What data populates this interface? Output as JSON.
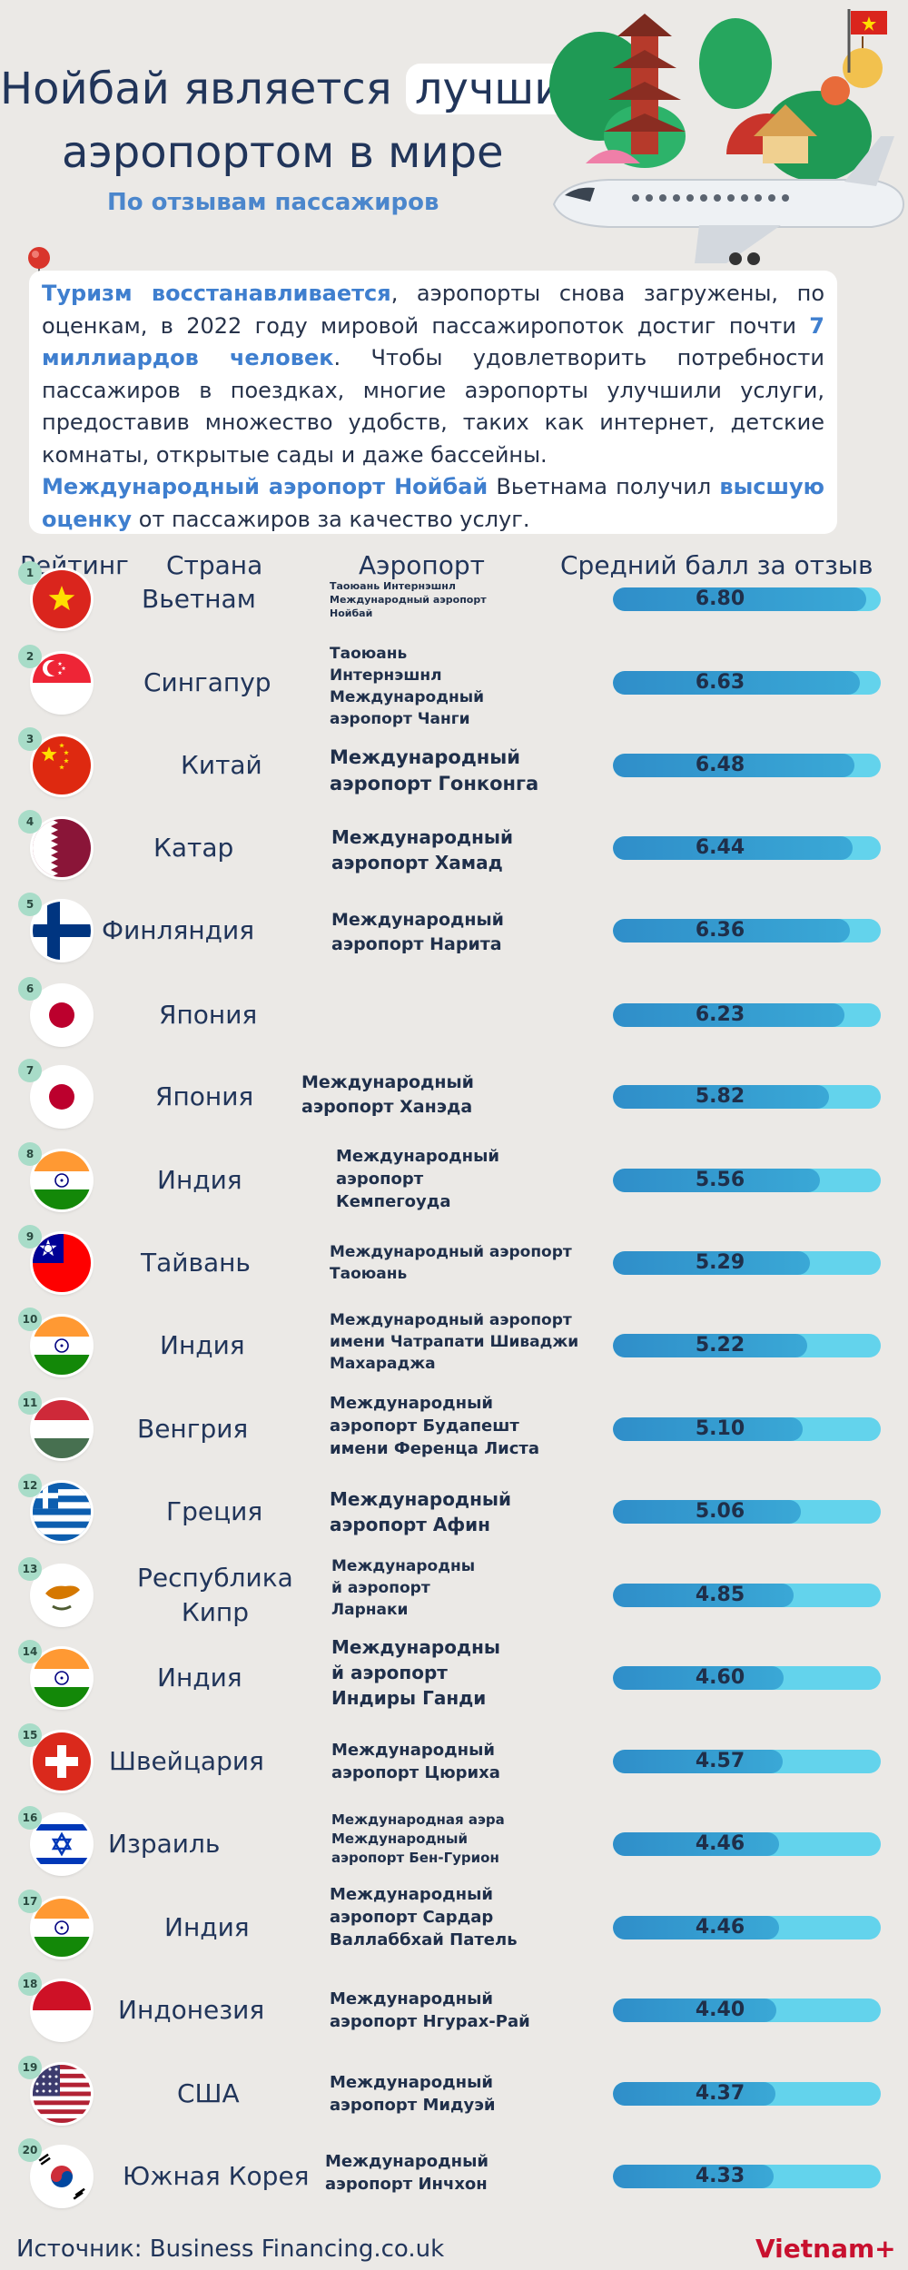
{
  "header": {
    "title_line1_a": "Нойбай является ",
    "title_line1_highlight": "лучшим",
    "title_line2": "аэропортом в мире",
    "subtitle": "По отзывам пассажиров"
  },
  "intro": {
    "p1_hl1": "Туризм восстанавливается",
    "p1_t1": ", аэропорты снова загружены, по оценкам, в 2022 году мировой пассажиропоток достиг почти ",
    "p1_hl2": "7 миллиардов человек",
    "p1_t2": ". Чтобы удовлетворить потребности пассажиров в поездках, многие аэропорты улучшили услуги, предоставив множество удобств, таких как интернет, детские комнаты, открытые сады и даже бассейны.",
    "p2_hl1": "Международный аэропорт Нойбай",
    "p2_t1": " Вьетнама получил ",
    "p2_hl2": "высшую оценку",
    "p2_t2": " от пассажиров за качество услуг."
  },
  "table": {
    "headers": {
      "rank": "Рейтинг",
      "country": "Страна",
      "airport": "Аэропорт",
      "score": "Средний балл за отзыв"
    },
    "max_score": 7.2,
    "rows": [
      {
        "rank": "1",
        "flag": "vietnam-flag",
        "country": "Вьетнам",
        "airport": "Таоюань Интернэшнл\nМеждународный аэропорт\nНойбай",
        "score": "6.80",
        "value": 6.8
      },
      {
        "rank": "2",
        "flag": "singapore-flag",
        "country": "Сингапур",
        "airport": "Таоюань\nИнтернэшнл\nМеждународный\nаэропорт Чанги",
        "score": "6.63",
        "value": 6.63
      },
      {
        "rank": "3",
        "flag": "china-flag",
        "country": "Китай",
        "airport": "Международный\nаэропорт Гонконга",
        "score": "6.48",
        "value": 6.48
      },
      {
        "rank": "4",
        "flag": "qatar-flag",
        "country": "Катар",
        "airport": "Международный\nаэропорт Хамад",
        "score": "6.44",
        "value": 6.44
      },
      {
        "rank": "5",
        "flag": "finland-flag",
        "country": "Финляндия",
        "airport": "Международный\nаэропорт Нарита",
        "score": "6.36",
        "value": 6.36
      },
      {
        "rank": "6",
        "flag": "japan-flag",
        "country": "Япония",
        "airport": "",
        "score": "6.23",
        "value": 6.23
      },
      {
        "rank": "7",
        "flag": "japan-flag",
        "country": "Япония",
        "airport": "Международный\nаэропорт Ханэда",
        "score": "5.82",
        "value": 5.82
      },
      {
        "rank": "8",
        "flag": "india-flag",
        "country": "Индия",
        "airport": "Международный\n      аэропорт\n    Кемпегоуда",
        "score": "5.56",
        "value": 5.56
      },
      {
        "rank": "9",
        "flag": "taiwan-flag",
        "country": "Тайвань",
        "airport": "Международный аэропорт\nТаоюань",
        "score": "5.29",
        "value": 5.29
      },
      {
        "rank": "10",
        "flag": "india-flag",
        "country": "Индия",
        "airport": "Международный аэропорт\nимени Чатрапати Шиваджи\nМахараджа",
        "score": "5.22",
        "value": 5.22
      },
      {
        "rank": "11",
        "flag": "hungary-flag",
        "country": "Венгрия",
        "airport": "Международный\nаэропорт Будапешт\nимени Ференца Листа",
        "score": "5.10",
        "value": 5.1
      },
      {
        "rank": "12",
        "flag": "greece-flag",
        "country": "Греция",
        "airport": "Международный\nаэропорт Афин",
        "score": "5.06",
        "value": 5.06
      },
      {
        "rank": "13",
        "flag": "cyprus-flag",
        "country": "Республика\nКипр",
        "airport": "Международны\nй аэропорт\nЛарнаки",
        "score": "4.85",
        "value": 4.85
      },
      {
        "rank": "14",
        "flag": "india-flag",
        "country": "Индия",
        "airport": "Международны\nй аэропорт\nИндиры Ганди",
        "score": "4.60",
        "value": 4.6
      },
      {
        "rank": "15",
        "flag": "switzerland-flag",
        "country": "Швейцария",
        "airport": "Международный\nаэропорт Цюриха",
        "score": "4.57",
        "value": 4.57
      },
      {
        "rank": "16",
        "flag": "israel-flag",
        "country": "Израиль",
        "airport": "Международная аэра\nМеждународный\nаэропорт Бен-Гурион",
        "score": "4.46",
        "value": 4.46
      },
      {
        "rank": "17",
        "flag": "india-flag",
        "country": "Индия",
        "airport": "Международный\nаэропорт Сардар\nВаллаббхай Патель",
        "score": "4.46",
        "value": 4.46
      },
      {
        "rank": "18",
        "flag": "indonesia-flag",
        "country": "Индонезия",
        "airport": "Международный\nаэропорт Нгурах-Рай",
        "score": "4.40",
        "value": 4.4
      },
      {
        "rank": "19",
        "flag": "usa-flag",
        "country": "США",
        "airport": "Международный\nаэропорт Мидуэй",
        "score": "4.37",
        "value": 4.37
      },
      {
        "rank": "20",
        "flag": "south-korea-flag",
        "country": "Южная Корея",
        "airport": "Международный\nаэропорт Инчхон",
        "score": "4.33",
        "value": 4.33
      }
    ]
  },
  "footer": {
    "source": "Источник: Business Financing.co.uk",
    "logo": "Vietnam+"
  }
}
